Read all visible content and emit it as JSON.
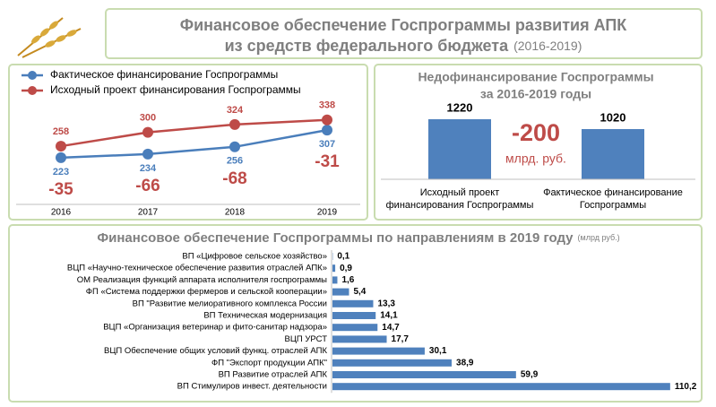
{
  "header": {
    "title": [
      "Финансовое обеспечение Госпрограммы развития АПК",
      "из средств федерального бюджета"
    ],
    "subtitle": "(2016-2019)"
  },
  "chart_data": [
    {
      "type": "line",
      "categories": [
        "2016",
        "2017",
        "2018",
        "2019"
      ],
      "series": [
        {
          "name": "Фактическое финансирование Госпрограммы",
          "color": "#4a7ebb",
          "values": [
            223,
            234,
            256,
            307
          ]
        },
        {
          "name": "Исходный проект финансирования Госпрограммы",
          "color": "#be4b48",
          "values": [
            258,
            300,
            324,
            338
          ]
        }
      ],
      "annotations": [
        -35,
        -66,
        -68,
        -31
      ],
      "annotation_color": "#be4b48",
      "ylim": [
        100,
        400
      ]
    },
    {
      "type": "bar",
      "title": [
        "Недофинансирование  Госпрограммы",
        "за 2016-2019 годы"
      ],
      "categories": [
        "Исходный проект финансирования Госпрограммы",
        "Фактическое финансирование Госпрограммы"
      ],
      "values": [
        1220,
        1020
      ],
      "color": "#4f81bd",
      "annotation": {
        "value": -200,
        "unit": "млрд. руб."
      },
      "annotation_color": "#be4b48",
      "ylim": [
        0,
        1300
      ]
    },
    {
      "type": "hbar",
      "title": "Финансовое обеспечение Госпрограммы по направлениям в 2019 году",
      "subtitle": "(млрд руб.)",
      "categories": [
        "ВП «Цифровое сельское хозяйство»",
        "ВЦП «Научно-техническое обеспечение развития отраслей АПК»",
        "ОМ Реализация функций аппарата исполнителя госпрограммы",
        "ФП «Система поддержки фермеров и сельской кооперации»",
        "ВП \"Развитие мелиоративного комплекса России",
        "ВП Техническая модернизация",
        "ВЦП «Организация ветеринар и фито-санитар надзора»",
        "ВЦП УРСТ",
        "ВЦП Обеспечение общих условий функц. отраслей АПК",
        "ФП \"Экспорт продукции АПК\"",
        "ВП Развитие отраслей АПК",
        "ВП Стимулиров инвест. деятельности"
      ],
      "values": [
        0.1,
        0.9,
        1.6,
        5.4,
        13.3,
        14.1,
        14.7,
        17.7,
        30.1,
        38.9,
        59.9,
        110.2
      ],
      "value_labels": [
        "0,1",
        "0,9",
        "1,6",
        "5,4",
        "13,3",
        "14,1",
        "14,7",
        "17,7",
        "30,1",
        "38,9",
        "59,9",
        "110,2"
      ],
      "color": "#4f81bd",
      "xlim": [
        0,
        112
      ]
    }
  ]
}
